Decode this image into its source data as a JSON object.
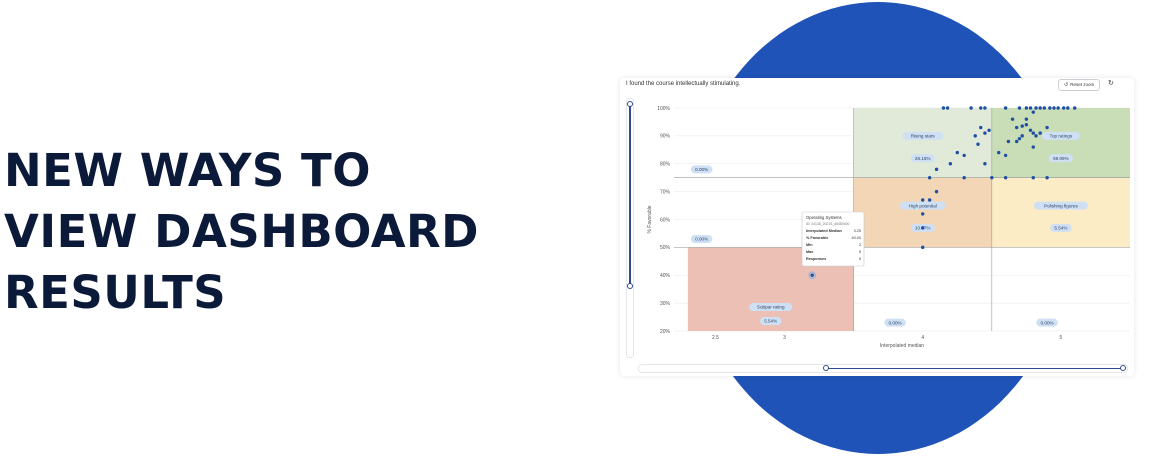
{
  "headline": {
    "line1": "NEW WAYS TO",
    "line2": "VIEW DASHBOARD",
    "line3": "RESULTS"
  },
  "card": {
    "title": "I found the course intellectually stimulating.",
    "reset_label": "Reset zoom",
    "reset_icon": "undo-icon",
    "refresh_icon": "refresh-icon"
  },
  "colors": {
    "circle": "#1f53b7",
    "red": "#ecc0b5",
    "orange": "#f3d6b5",
    "light_green": "#e1ead9",
    "green": "#c9ddb7",
    "yellow": "#fbecc6",
    "point": "#1d4fa3"
  },
  "chart_data": {
    "type": "scatter",
    "xlabel": "Interpolated median",
    "ylabel": "% Favorable",
    "xlim": [
      2.2,
      5.5
    ],
    "ylim": [
      20,
      100
    ],
    "xticks": [
      2.5,
      3,
      4,
      5
    ],
    "yticks": [
      20,
      30,
      40,
      50,
      60,
      70,
      80,
      90,
      100
    ],
    "x_divisions": [
      3.5,
      4.5
    ],
    "y_divisions": [
      50,
      75
    ],
    "quadrants": [
      {
        "name": "Rising stars",
        "percent": "26.15%",
        "x0": 3.5,
        "x1": 4.5,
        "y0": 75,
        "y1": 100,
        "color": "light_green"
      },
      {
        "name": "Top ratings",
        "percent": "69.09%",
        "x0": 4.5,
        "x1": 5.5,
        "y0": 75,
        "y1": 100,
        "color": "green"
      },
      {
        "name": "High potential",
        "percent": "10.77%",
        "x0": 3.5,
        "x1": 4.5,
        "y0": 50,
        "y1": 75,
        "color": "orange"
      },
      {
        "name": "Polishing figures",
        "percent": "5.54%",
        "x0": 4.5,
        "x1": 5.5,
        "y0": 50,
        "y1": 75,
        "color": "yellow"
      },
      {
        "name": "Subpar rating",
        "percent": "5.54%",
        "x0": 2.3,
        "x1": 3.5,
        "y0": 20,
        "y1": 50,
        "color": "red"
      }
    ],
    "percent_labels": [
      {
        "text": "0.00%",
        "x": 2.4,
        "y": 78
      },
      {
        "text": "0.00%",
        "x": 2.4,
        "y": 53
      },
      {
        "text": "0.00%",
        "x": 3.8,
        "y": 23
      },
      {
        "text": "0.00%",
        "x": 4.9,
        "y": 23
      }
    ],
    "points": [
      [
        3.2,
        40
      ],
      [
        3.3,
        50
      ],
      [
        3.5,
        50
      ],
      [
        4.0,
        50
      ],
      [
        4.0,
        57
      ],
      [
        4.0,
        62
      ],
      [
        4.0,
        67
      ],
      [
        4.05,
        67
      ],
      [
        4.1,
        70
      ],
      [
        4.05,
        75
      ],
      [
        4.3,
        75
      ],
      [
        4.5,
        75
      ],
      [
        4.6,
        75
      ],
      [
        4.8,
        75
      ],
      [
        4.9,
        75
      ],
      [
        4.1,
        78
      ],
      [
        4.2,
        80
      ],
      [
        4.3,
        83
      ],
      [
        4.25,
        84
      ],
      [
        4.45,
        80
      ],
      [
        4.4,
        87
      ],
      [
        4.38,
        90
      ],
      [
        4.45,
        91
      ],
      [
        4.48,
        92
      ],
      [
        4.42,
        93
      ],
      [
        4.55,
        84
      ],
      [
        4.6,
        83
      ],
      [
        4.62,
        88
      ],
      [
        4.68,
        88
      ],
      [
        4.7,
        89
      ],
      [
        4.72,
        90
      ],
      [
        4.75,
        94
      ],
      [
        4.78,
        92
      ],
      [
        4.8,
        91
      ],
      [
        4.82,
        90
      ],
      [
        4.85,
        91
      ],
      [
        4.9,
        93
      ],
      [
        4.68,
        93
      ],
      [
        4.72,
        93.5
      ],
      [
        4.8,
        86
      ],
      [
        4.75,
        96
      ],
      [
        4.8,
        98.5
      ],
      [
        4.65,
        96
      ],
      [
        4.15,
        100
      ],
      [
        4.18,
        100
      ],
      [
        4.35,
        100
      ],
      [
        4.42,
        100
      ],
      [
        4.45,
        100
      ],
      [
        4.6,
        100
      ],
      [
        4.7,
        100
      ],
      [
        4.75,
        100
      ],
      [
        4.78,
        100
      ],
      [
        4.82,
        100
      ],
      [
        4.85,
        100
      ],
      [
        4.88,
        100
      ],
      [
        4.92,
        100
      ],
      [
        4.95,
        100
      ],
      [
        4.98,
        100
      ],
      [
        5.02,
        100
      ],
      [
        5.05,
        100
      ],
      [
        5.1,
        100
      ]
    ],
    "tooltip": {
      "title": "Operating Systems",
      "subtitle": "ID: 24136_2021S_45480400",
      "rows": [
        {
          "label": "Interpolated Median",
          "value": "3.25"
        },
        {
          "label": "% Favorable",
          "value": "40.00"
        },
        {
          "label": "Min",
          "value": "2"
        },
        {
          "label": "Max",
          "value": "5"
        },
        {
          "label": "Responses",
          "value": "5"
        }
      ]
    }
  }
}
